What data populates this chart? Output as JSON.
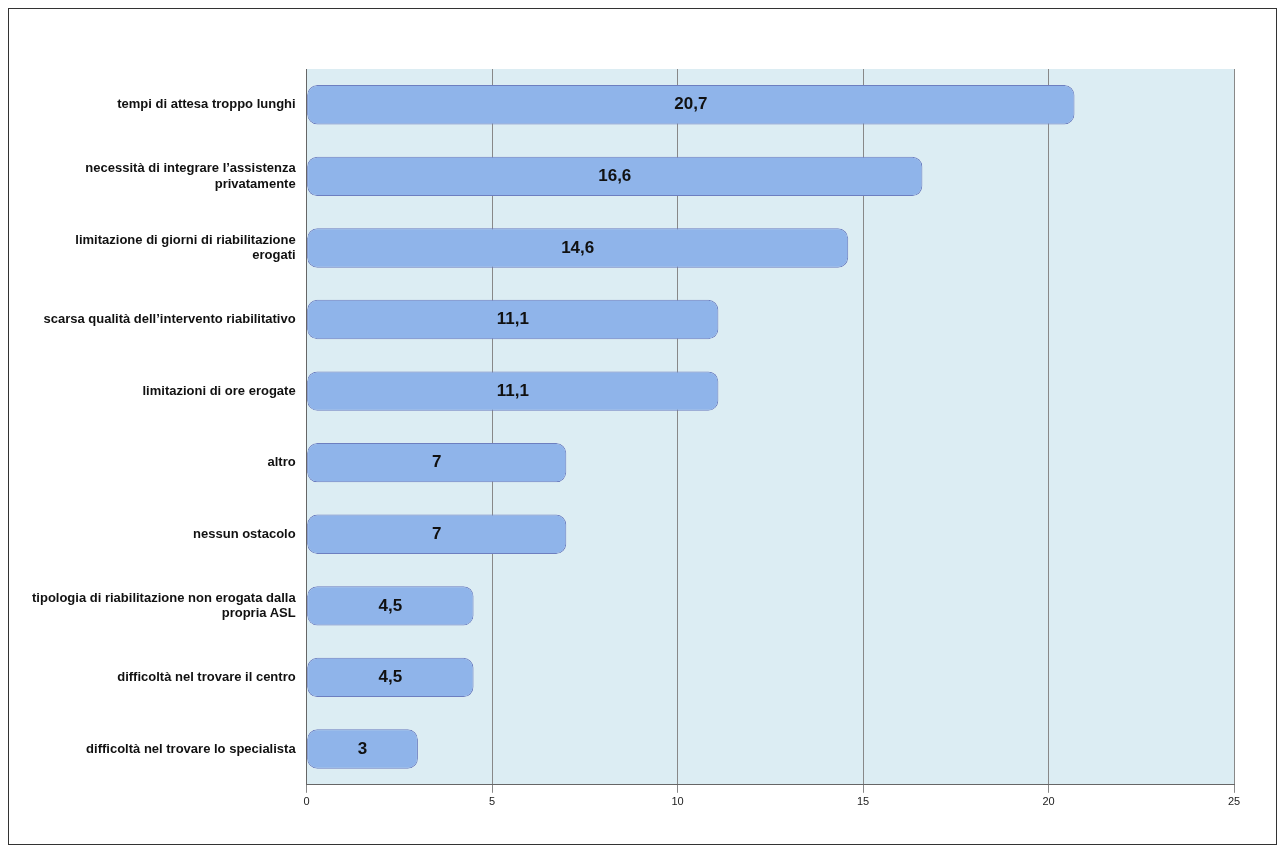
{
  "chart_data": {
    "type": "bar",
    "orientation": "horizontal",
    "categories": [
      "tempi di attesa troppo lunghi",
      "necessità di integrare l’assistenza privatamente",
      "limitazione di giorni di riabilitazione erogati",
      "scarsa qualità dell’intervento riabilitativo",
      "limitazioni di ore erogate",
      "altro",
      "nessun ostacolo",
      "tipologia di riabilitazione non erogata dalla propria ASL",
      "difficoltà nel trovare il centro",
      "difficoltà nel trovare lo specialista"
    ],
    "values": [
      20.7,
      16.6,
      14.6,
      11.1,
      11.1,
      7,
      7,
      4.5,
      4.5,
      3
    ],
    "color": "#8fb4ea",
    "xlim": [
      0,
      25
    ],
    "xticks": [
      0,
      5,
      10,
      15,
      20,
      25
    ],
    "value_labels": [
      "20,7",
      "16,6",
      "14,6",
      "11,1",
      "11,1",
      "7",
      "7",
      "4,5",
      "4,5",
      "3"
    ],
    "grid": "x",
    "legend": false
  }
}
